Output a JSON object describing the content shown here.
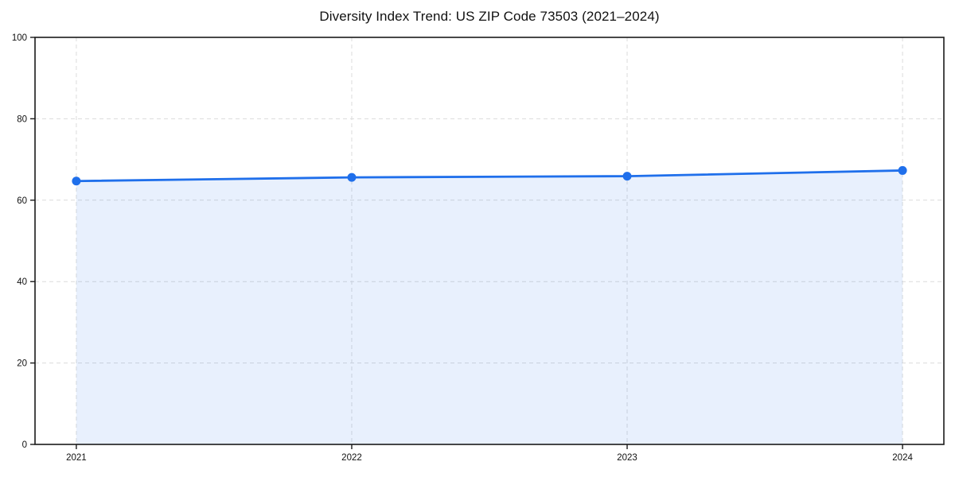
{
  "chart_data": {
    "type": "line",
    "title": "Diversity Index Trend: US ZIP Code 73503 (2021–2024)",
    "xlabel": "",
    "ylabel": "",
    "x": [
      "2021",
      "2022",
      "2023",
      "2024"
    ],
    "series": [
      {
        "name": "Diversity Index",
        "values": [
          64.7,
          65.6,
          65.9,
          67.3
        ]
      }
    ],
    "ylim": [
      0,
      100
    ],
    "yticks": [
      0,
      20,
      40,
      60,
      80,
      100
    ],
    "x_margin_fraction": 0.05,
    "area_fill": true,
    "marker": "circle",
    "grid": "dashed-both-axes",
    "legend": "none",
    "colors": {
      "line": "#1f6feb",
      "fill": "rgba(31,111,235,0.10)",
      "grid": "#dcdcdc",
      "spine": "#1a1a1a",
      "tick_text": "#111111",
      "title_text": "#111111",
      "background": "#ffffff"
    }
  }
}
